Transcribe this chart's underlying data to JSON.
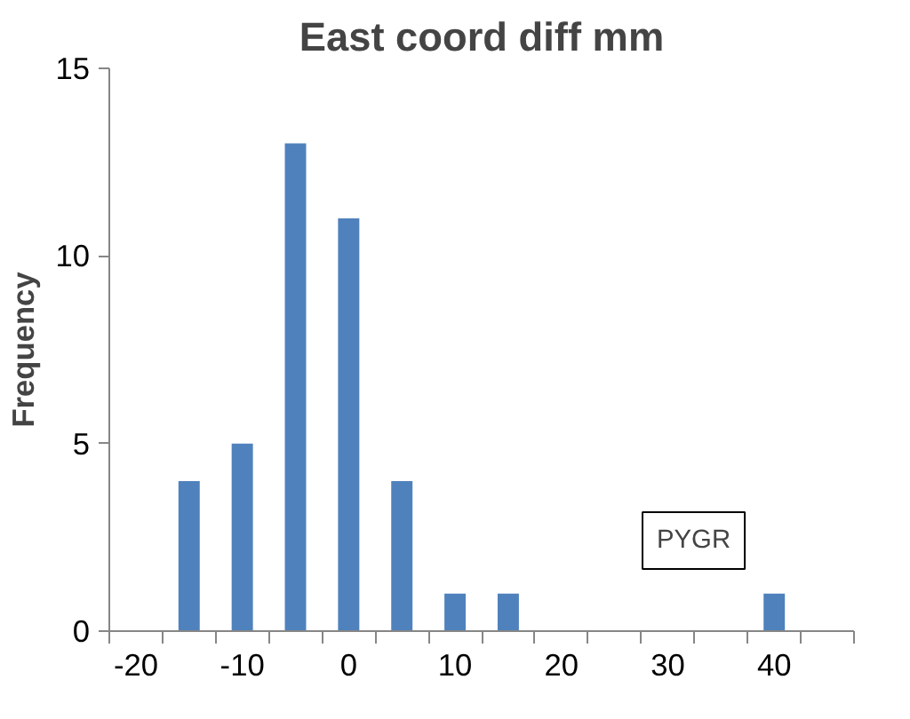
{
  "chart_data": {
    "type": "bar",
    "title": "East coord diff mm",
    "ylabel": "Frequency",
    "categories": [
      "-20",
      null,
      "-10",
      null,
      "0",
      null,
      "10",
      null,
      "20",
      null,
      "30",
      null,
      "40",
      null
    ],
    "values": [
      0,
      4,
      5,
      13,
      11,
      4,
      1,
      1,
      0,
      0,
      0,
      0,
      1,
      0
    ],
    "color": "#4f81bd",
    "ylim": [
      0,
      15
    ],
    "yticks": [
      0,
      5,
      10,
      15
    ],
    "grid": false,
    "annotations": [
      "PYGR"
    ]
  }
}
